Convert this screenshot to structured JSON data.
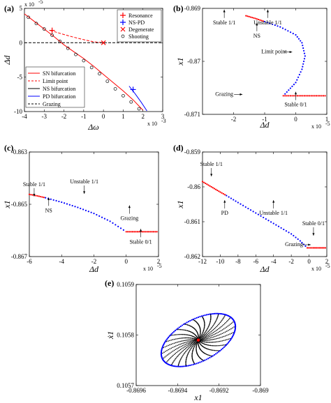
{
  "chart_data": [
    {
      "id": "a",
      "type": "line",
      "panel_label": "(a)",
      "xlabel": "Δω",
      "ylabel": "Δd",
      "x_exponent": "x 10",
      "x_exponent_power": "-3",
      "y_exponent": "x 10",
      "y_exponent_power": "-5",
      "xlim": [
        -4,
        3
      ],
      "ylim": [
        -10,
        5
      ],
      "xticks": [
        -4,
        -3,
        -2,
        -1,
        0,
        1,
        2,
        3
      ],
      "yticks": [
        -10,
        -5,
        0,
        5
      ],
      "series": [
        {
          "name": "SN bifurcation",
          "color": "#ff0000",
          "style": "solid",
          "x": [
            -4,
            -3.5,
            -3,
            -2.5,
            -2,
            -1.5,
            -1,
            -0.5,
            0,
            0.5,
            1,
            1.5,
            2
          ],
          "y": [
            4.2,
            3.1,
            2.0,
            0.9,
            -0.3,
            -1.3,
            -2.3,
            -3.4,
            -4.6,
            -5.8,
            -7.0,
            -8.3,
            -9.8
          ]
        },
        {
          "name": "Limit point",
          "color": "#ff0000",
          "style": "dashed",
          "x": [
            -2.7,
            -2.0,
            -1.5,
            -1.0,
            -0.5,
            0
          ],
          "y": [
            1.8,
            1.2,
            0.8,
            0.45,
            0.15,
            0
          ]
        },
        {
          "name": "NS bifurcation",
          "color": "#000000",
          "style": "solid",
          "x": [
            -4,
            -3.5,
            -3,
            -2.5,
            -2,
            -1.5,
            -1,
            -0.5,
            0,
            0.5,
            1,
            1.5,
            2
          ],
          "y": [
            4.2,
            3.1,
            2.0,
            0.9,
            -0.3,
            -1.3,
            -2.3,
            -3.4,
            -4.6,
            -5.8,
            -7.0,
            -8.3,
            -9.8
          ]
        },
        {
          "name": "PD bifurcation",
          "color": "#0000ff",
          "style": "solid",
          "x": [
            1.3,
            1.6,
            1.9,
            2.2
          ],
          "y": [
            -6.3,
            -7.4,
            -8.6,
            -9.9
          ]
        },
        {
          "name": "Grazing",
          "color": "#000000",
          "style": "dashed",
          "x": [
            -4,
            3
          ],
          "y": [
            0,
            0
          ]
        },
        {
          "name": "Shooting",
          "color": "#000000",
          "style": "marker-circle",
          "x": [
            -3.8,
            -3.4,
            -3.0,
            -2.6,
            -2.2,
            -1.8,
            -1.4,
            -1.0,
            -0.6,
            -0.2,
            0.2,
            0.6,
            1.0,
            1.4,
            1.8
          ],
          "y": [
            3.7,
            2.8,
            2.0,
            1.1,
            0.2,
            -0.8,
            -1.7,
            -2.6,
            -3.6,
            -4.5,
            -5.6,
            -6.7,
            -7.7,
            -8.6,
            -9.6
          ]
        }
      ],
      "points": [
        {
          "name": "Resonance",
          "marker": "+",
          "color": "#ff0000",
          "x": [
            -2.6
          ],
          "y": [
            1.8
          ]
        },
        {
          "name": "NS-PD",
          "marker": "+",
          "color": "#0000ff",
          "x": [
            1.5
          ],
          "y": [
            -6.8
          ]
        },
        {
          "name": "Degenerate",
          "marker": "x",
          "color": "#ff0000",
          "x": [
            0
          ],
          "y": [
            0
          ]
        }
      ],
      "legend_top": [
        "Resonance",
        "NS-PD",
        "Degenerate",
        "Shooting"
      ],
      "legend_bottom": [
        "SN bifurcation",
        "Limit point",
        "NS bifurcation",
        "PD bifurcation",
        "Grazing"
      ],
      "legend_placement": "top-right / bottom-left"
    },
    {
      "id": "b",
      "type": "scatter",
      "panel_label": "(b)",
      "xlabel": "Δd",
      "ylabel": "x1",
      "x_exponent": "x 10",
      "x_exponent_power": "-5",
      "xlim": [
        -3,
        1
      ],
      "ylim": [
        -0.871,
        -0.869
      ],
      "xticks": [
        -2,
        -1,
        0,
        1
      ],
      "xtick_labels": [
        "-2",
        "-1",
        "0",
        "1"
      ],
      "yticks": [
        -0.871,
        -0.87,
        -0.869
      ],
      "ytick_labels": [
        "-0.871",
        "-0.87",
        "-0.869"
      ],
      "series": [
        {
          "name": "Stable 1/1",
          "color": "#ff0000",
          "x": [
            -1.6,
            -1.3,
            -1.0
          ],
          "y": [
            -0.86914,
            -0.86919,
            -0.86925
          ]
        },
        {
          "name": "Unstable 1/1",
          "color": "#0000ff",
          "x": [
            -1.0,
            -0.5,
            0,
            0.2,
            0.3,
            0.2,
            0,
            -0.4
          ],
          "y": [
            -0.86925,
            -0.86935,
            -0.8695,
            -0.86965,
            -0.8699,
            -0.87015,
            -0.8704,
            -0.87065
          ]
        },
        {
          "name": "Stable 0/1",
          "color": "#ff0000",
          "x": [
            -0.4,
            0,
            0.5,
            1
          ],
          "y": [
            -0.87065,
            -0.87065,
            -0.87065,
            -0.87065
          ]
        }
      ],
      "annotations": [
        {
          "text": "Stable 1/1",
          "x": -2.3,
          "y": -0.8693
        },
        {
          "text": "Unstable 1/1",
          "x": -0.9,
          "y": -0.8693
        },
        {
          "text": "NS",
          "x": -1.25,
          "y": -0.86955
        },
        {
          "text": "Limit point",
          "x": -0.7,
          "y": -0.86985
        },
        {
          "text": "Grazing",
          "x": -2.3,
          "y": -0.87065
        },
        {
          "text": "Stable 0/1",
          "x": 0,
          "y": -0.87085
        }
      ]
    },
    {
      "id": "c",
      "type": "scatter",
      "panel_label": "(c)",
      "xlabel": "Δd",
      "ylabel": "x1",
      "x_exponent": "x 10",
      "x_exponent_power": "-5",
      "xlim": [
        -6,
        2
      ],
      "ylim": [
        -0.867,
        -0.863
      ],
      "xticks": [
        -6,
        -4,
        -2,
        0,
        2
      ],
      "xtick_labels": [
        "-6",
        "-4",
        "-2",
        "0",
        "2"
      ],
      "yticks": [
        -0.867,
        -0.865,
        -0.863
      ],
      "ytick_labels": [
        "-0.867",
        "-0.865",
        "-0.863"
      ],
      "series": [
        {
          "name": "Stable 1/1",
          "color": "#ff0000",
          "x": [
            -6,
            -5.5,
            -5.0
          ],
          "y": [
            -0.86462,
            -0.86468,
            -0.86475
          ]
        },
        {
          "name": "Unstable 1/1",
          "color": "#0000ff",
          "x": [
            -5.0,
            -4,
            -3,
            -2,
            -1,
            -0.5,
            0
          ],
          "y": [
            -0.86475,
            -0.86492,
            -0.86512,
            -0.86535,
            -0.86565,
            -0.86585,
            -0.86605
          ]
        },
        {
          "name": "Stable 0/1",
          "color": "#ff0000",
          "x": [
            0,
            0.5,
            1,
            1.5,
            2
          ],
          "y": [
            -0.86605,
            -0.86605,
            -0.86605,
            -0.86605,
            -0.86605
          ]
        }
      ],
      "annotations": [
        {
          "text": "Stable 1/1",
          "x": -5.7,
          "y": -0.8643
        },
        {
          "text": "Unstable 1/1",
          "x": -2.6,
          "y": -0.8642
        },
        {
          "text": "NS",
          "x": -4.8,
          "y": -0.8653
        },
        {
          "text": "Grazing",
          "x": 0.2,
          "y": -0.8656
        },
        {
          "text": "Stable 0/1",
          "x": 0.9,
          "y": -0.8665
        }
      ]
    },
    {
      "id": "d",
      "type": "scatter",
      "panel_label": "(d)",
      "xlabel": "Δd",
      "ylabel": "x1",
      "x_exponent": "x 10",
      "x_exponent_power": "-5",
      "xlim": [
        -12,
        2
      ],
      "ylim": [
        -0.862,
        -0.859
      ],
      "xticks": [
        -12,
        -10,
        -8,
        -6,
        -4,
        -2,
        0,
        2
      ],
      "xtick_labels": [
        "-12",
        "-10",
        "-8",
        "-6",
        "-4",
        "-2",
        "0",
        "2"
      ],
      "yticks": [
        -0.862,
        -0.861,
        -0.86,
        -0.859
      ],
      "ytick_labels": [
        "-0.862",
        "-0.861",
        "-0.86",
        "-0.859"
      ],
      "series": [
        {
          "name": "Stable 1/1",
          "color": "#ff0000",
          "x": [
            -12,
            -11,
            -10,
            -9.3
          ],
          "y": [
            -0.85985,
            -0.86,
            -0.86015,
            -0.86025
          ]
        },
        {
          "name": "Unstable 1/1",
          "color": "#0000ff",
          "x": [
            -9.3,
            -8,
            -6,
            -4,
            -2,
            -1,
            -0.2
          ],
          "y": [
            -0.86025,
            -0.86045,
            -0.86075,
            -0.86105,
            -0.86135,
            -0.86155,
            -0.86175
          ]
        },
        {
          "name": "Stable 0/1",
          "color": "#ff0000",
          "x": [
            -0.2,
            0.5,
            1,
            1.5,
            2
          ],
          "y": [
            -0.86175,
            -0.86175,
            -0.86175,
            -0.86175,
            -0.86175
          ]
        }
      ],
      "annotations": [
        {
          "text": "Stable 1/1",
          "x": -11,
          "y": -0.8594
        },
        {
          "text": "Unstable 1/1",
          "x": -4,
          "y": -0.8608
        },
        {
          "text": "PD",
          "x": -9.5,
          "y": -0.8608
        },
        {
          "text": "Stable 0/1",
          "x": 0.5,
          "y": -0.8611
        },
        {
          "text": "Grazing",
          "x": -1.7,
          "y": -0.8617
        }
      ]
    },
    {
      "id": "e",
      "type": "scatter",
      "panel_label": "(e)",
      "xlabel": "x1",
      "ylabel": "ẋ1",
      "xlim": [
        -0.8696,
        -0.869
      ],
      "ylim": [
        0.1057,
        0.1059
      ],
      "xticks": [
        -0.8696,
        -0.8694,
        -0.8692,
        -0.869
      ],
      "xtick_labels": [
        "-0.8696",
        "-0.8694",
        "-0.8692",
        "-0.869"
      ],
      "yticks": [
        0.1057,
        0.1058,
        0.1059
      ],
      "ytick_labels": [
        "0.1057",
        "0.1058",
        "0.1059"
      ],
      "center": {
        "x": -0.8693,
        "y": 0.10579
      },
      "series": [
        {
          "name": "Unstable orbit boundary",
          "color": "#0000ff"
        },
        {
          "name": "Spiral trajectory",
          "color": "#000000"
        },
        {
          "name": "Fixed point",
          "color": "#ff0000"
        }
      ]
    }
  ]
}
